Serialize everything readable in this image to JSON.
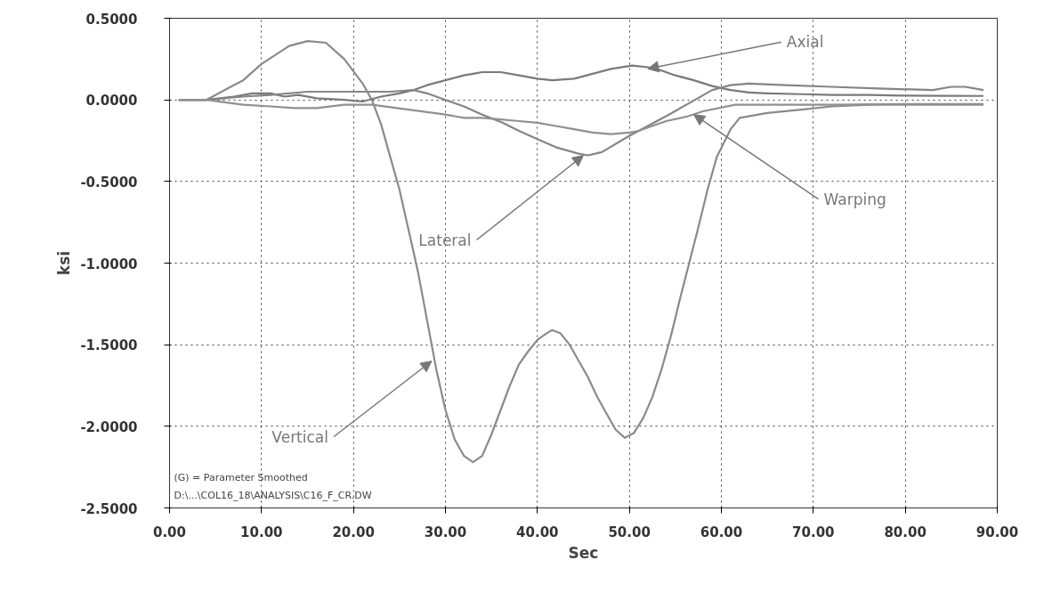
{
  "chart_data": {
    "type": "line",
    "xlabel": "Sec",
    "ylabel": "ksi",
    "xlim": [
      0,
      90
    ],
    "ylim": [
      -2.5,
      0.5
    ],
    "xticks": [
      {
        "value": 0,
        "label": "0.00"
      },
      {
        "value": 10,
        "label": "10.00"
      },
      {
        "value": 20,
        "label": "20.00"
      },
      {
        "value": 30,
        "label": "30.00"
      },
      {
        "value": 40,
        "label": "40.00"
      },
      {
        "value": 50,
        "label": "50.00"
      },
      {
        "value": 60,
        "label": "60.00"
      },
      {
        "value": 70,
        "label": "70.00"
      },
      {
        "value": 80,
        "label": "80.00"
      },
      {
        "value": 90,
        "label": "90.00"
      }
    ],
    "yticks": [
      {
        "value": 0.5,
        "label": "0.5000"
      },
      {
        "value": 0,
        "label": "0.0000"
      },
      {
        "value": -0.5,
        "label": "-0.5000"
      },
      {
        "value": -1,
        "label": "-1.0000"
      },
      {
        "value": -1.5,
        "label": "-1.5000"
      },
      {
        "value": -2,
        "label": "-2.0000"
      },
      {
        "value": -2.5,
        "label": "-2.5000"
      }
    ],
    "grid": true,
    "marker": "none",
    "line_style": "solid",
    "series": [
      {
        "color": "#8a8a8a",
        "x": [
          1,
          4,
          8,
          10,
          13,
          15,
          17,
          19,
          21,
          22,
          23,
          24,
          25,
          26,
          27,
          28,
          28.5,
          29,
          30,
          31,
          32,
          33,
          34,
          35,
          36,
          37,
          38,
          39,
          40,
          41,
          41.6,
          42.5,
          43.5,
          44.5,
          45.5,
          46.5,
          47.5,
          48.5,
          49.5,
          50.5,
          51.5,
          52.5,
          53.5,
          54.5,
          55.5,
          56.5,
          57.5,
          58.5,
          59.5,
          61,
          62,
          65,
          68.7,
          72,
          76,
          80,
          85,
          88.5
        ],
        "values": [
          0,
          0,
          0.12,
          0.22,
          0.33,
          0.36,
          0.35,
          0.25,
          0.1,
          0,
          -0.15,
          -0.35,
          -0.55,
          -0.8,
          -1.05,
          -1.35,
          -1.5,
          -1.65,
          -1.9,
          -2.08,
          -2.18,
          -2.22,
          -2.18,
          -2.05,
          -1.9,
          -1.75,
          -1.62,
          -1.54,
          -1.47,
          -1.43,
          -1.41,
          -1.43,
          -1.5,
          -1.6,
          -1.7,
          -1.82,
          -1.92,
          -2.02,
          -2.07,
          -2.04,
          -1.95,
          -1.82,
          -1.65,
          -1.45,
          -1.22,
          -1.0,
          -0.78,
          -0.55,
          -0.35,
          -0.18,
          -0.11,
          -0.08,
          -0.06,
          -0.04,
          -0.03,
          -0.03,
          -0.03,
          -0.03
        ]
      },
      {
        "color": "#7a7a7a",
        "x": [
          1,
          4,
          7,
          9,
          11,
          12.5,
          14,
          16,
          19,
          21,
          23,
          25,
          26.5,
          28,
          30,
          32,
          33,
          34,
          36,
          38,
          40,
          41.6,
          44,
          46,
          48,
          50.3,
          52,
          53.5,
          55,
          57,
          59,
          61,
          63,
          65,
          68.7,
          72,
          76,
          79.5,
          84,
          88.5
        ],
        "values": [
          0,
          0,
          0.02,
          0.04,
          0.04,
          0.02,
          0.03,
          0.01,
          0,
          -0.01,
          0.02,
          0.04,
          0.06,
          0.09,
          0.12,
          0.15,
          0.16,
          0.17,
          0.17,
          0.15,
          0.13,
          0.12,
          0.13,
          0.16,
          0.19,
          0.21,
          0.2,
          0.18,
          0.15,
          0.12,
          0.085,
          0.06,
          0.045,
          0.04,
          0.035,
          0.03,
          0.03,
          0.026,
          0.025,
          0.024
        ]
      },
      {
        "color": "#858585",
        "x": [
          1,
          4,
          8,
          11,
          15,
          18,
          21,
          24,
          26.5,
          28,
          30,
          32,
          34,
          36.2,
          38,
          40,
          42,
          44.5,
          45.5,
          47,
          50,
          52,
          54.3,
          56.5,
          59,
          61,
          63,
          67,
          72,
          77,
          83,
          85,
          86.5,
          88.5
        ],
        "values": [
          0,
          0,
          0.02,
          0.03,
          0.05,
          0.05,
          0.05,
          0.05,
          0.06,
          0.04,
          0,
          -0.04,
          -0.09,
          -0.14,
          -0.19,
          -0.24,
          -0.29,
          -0.33,
          -0.34,
          -0.32,
          -0.22,
          -0.16,
          -0.09,
          -0.02,
          0.06,
          0.09,
          0.1,
          0.09,
          0.08,
          0.07,
          0.06,
          0.08,
          0.08,
          0.06
        ]
      },
      {
        "color": "#909090",
        "x": [
          1,
          4,
          8,
          11,
          13.6,
          16,
          19,
          22,
          26,
          30,
          32,
          34,
          36,
          38,
          40,
          42,
          44,
          46,
          48,
          50,
          51,
          52,
          54,
          56.4,
          58,
          61.5,
          66,
          72,
          80,
          88.5
        ],
        "values": [
          0,
          0,
          -0.03,
          -0.04,
          -0.05,
          -0.05,
          -0.03,
          -0.03,
          -0.06,
          -0.09,
          -0.11,
          -0.11,
          -0.12,
          -0.13,
          -0.14,
          -0.16,
          -0.18,
          -0.2,
          -0.21,
          -0.2,
          -0.19,
          -0.17,
          -0.13,
          -0.1,
          -0.07,
          -0.03,
          -0.03,
          -0.03,
          -0.025,
          -0.025
        ]
      }
    ],
    "annotations": [
      {
        "text": "Axial",
        "x": 52,
        "y": 0.19
      },
      {
        "text": "Lateral",
        "x": 45,
        "y": -0.34
      },
      {
        "text": "Warping",
        "x": 57,
        "y": -0.09
      },
      {
        "text": "Vertical",
        "x": 28.5,
        "y": -1.6
      },
      "(G) = Parameter Smoothed",
      "D:\\...\\COL16_18\\ANALYSIS\\C16_F_CR.DW"
    ]
  }
}
